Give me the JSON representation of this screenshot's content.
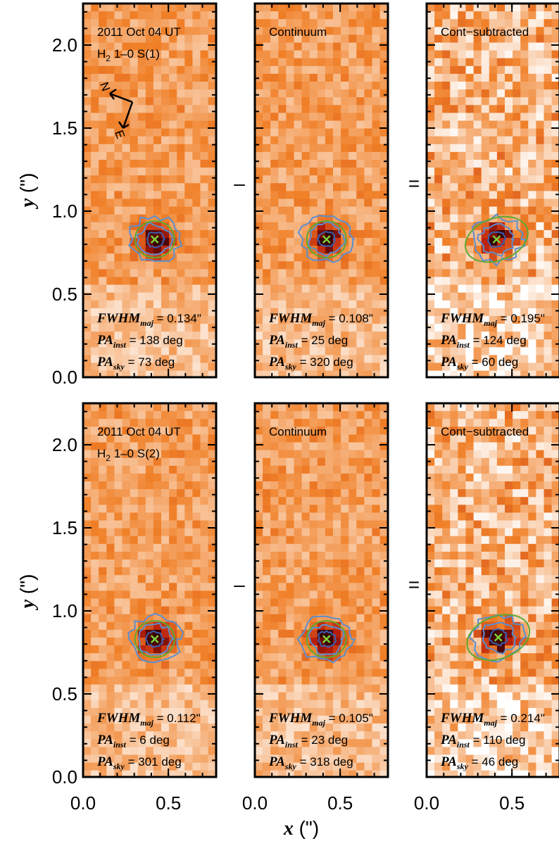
{
  "chart_data": {
    "type": "image-grid",
    "xlabel": "x",
    "xlabel_unit": "(\")",
    "ylabel": "y",
    "ylabel_unit": "(\")",
    "xlim": [
      0,
      0.78
    ],
    "ylim": [
      0,
      2.25
    ],
    "xticks": [
      {
        "value": 0,
        "label": "0.0"
      },
      {
        "value": 0.5,
        "label": "0.5"
      }
    ],
    "yticks": [
      {
        "value": 0,
        "label": "0.0"
      },
      {
        "value": 0.5,
        "label": "0.5"
      },
      {
        "value": 1,
        "label": "1.0"
      },
      {
        "value": 1.5,
        "label": "1.5"
      },
      {
        "value": 2,
        "label": "2.0"
      }
    ],
    "operators": [
      "–",
      "="
    ],
    "compass": [
      "N",
      "E"
    ],
    "panels": [
      {
        "title": "2011 Oct 04 UT",
        "line": {
          "species": "H",
          "sub": "2",
          "text": " 1–0 S(1)"
        },
        "peak": {
          "x": 0.42,
          "y": 0.83
        },
        "fwhm": {
          "name": "FWHM",
          "sub": "maj",
          "text": " = 0.134\""
        },
        "pa_inst": {
          "name": "PA",
          "sub": "inst",
          "text": " = 138 deg"
        },
        "pa_sky": {
          "name": "PA",
          "sub": "sky",
          "text": " = 73 deg"
        }
      },
      {
        "title": "Continuum",
        "peak": {
          "x": 0.42,
          "y": 0.83
        },
        "fwhm": {
          "name": "FWHM",
          "sub": "maj",
          "text": " = 0.108\""
        },
        "pa_inst": {
          "name": "PA",
          "sub": "inst",
          "text": " = 25 deg"
        },
        "pa_sky": {
          "name": "PA",
          "sub": "sky",
          "text": " = 320 deg"
        }
      },
      {
        "title": "Cont−subtracted",
        "peak": {
          "x": 0.41,
          "y": 0.83
        },
        "fwhm": {
          "name": "FWHM",
          "sub": "maj",
          "text": " = 0.195\""
        },
        "pa_inst": {
          "name": "PA",
          "sub": "inst",
          "text": " = 124 deg"
        },
        "pa_sky": {
          "name": "PA",
          "sub": "sky",
          "text": " = 60 deg"
        }
      },
      {
        "title": "2011 Oct 04 UT",
        "line": {
          "species": "H",
          "sub": "2",
          "text": " 1–0 S(2)"
        },
        "peak": {
          "x": 0.42,
          "y": 0.83
        },
        "fwhm": {
          "name": "FWHM",
          "sub": "maj",
          "text": " = 0.112\""
        },
        "pa_inst": {
          "name": "PA",
          "sub": "inst",
          "text": " = 6 deg"
        },
        "pa_sky": {
          "name": "PA",
          "sub": "sky",
          "text": " = 301 deg"
        }
      },
      {
        "title": "Continuum",
        "peak": {
          "x": 0.42,
          "y": 0.83
        },
        "fwhm": {
          "name": "FWHM",
          "sub": "maj",
          "text": " = 0.105\""
        },
        "pa_inst": {
          "name": "PA",
          "sub": "inst",
          "text": " = 23 deg"
        },
        "pa_sky": {
          "name": "PA",
          "sub": "sky",
          "text": " = 318 deg"
        }
      },
      {
        "title": "Cont−subtracted",
        "peak": {
          "x": 0.42,
          "y": 0.84
        },
        "fwhm": {
          "name": "FWHM",
          "sub": "maj",
          "text": " = 0.214\""
        },
        "pa_inst": {
          "name": "PA",
          "sub": "inst",
          "text": " = 110 deg"
        },
        "pa_sky": {
          "name": "PA",
          "sub": "sky",
          "text": " = 46 deg"
        }
      }
    ]
  }
}
